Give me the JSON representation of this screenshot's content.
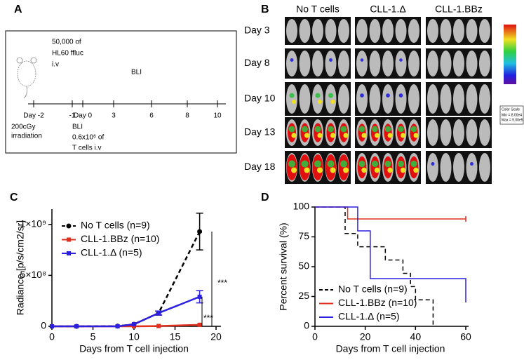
{
  "panel_a": {
    "letter": "A",
    "injection": [
      "50,000  of",
      "HL60  ffluc",
      "i.v"
    ],
    "bli_top": "BLI",
    "timeline": [
      "Day -2",
      "-1",
      "Day 0",
      "3",
      "6",
      "8",
      "10"
    ],
    "irradiation": [
      "200cGy",
      "irradiation"
    ],
    "tcell": [
      "BLI",
      "0.6x10⁶  of",
      "T cells i.v"
    ]
  },
  "panel_b": {
    "letter": "B",
    "columns": [
      "No T cells",
      "CLL-1.Δ",
      "CLL-1.BBz"
    ],
    "rows": [
      "Day 3",
      "Day 8",
      "Day 10",
      "Day 13",
      "Day 18"
    ],
    "scale": [
      "Color Scale",
      "Min = 8.00e4",
      "Max = 9.00e5"
    ]
  },
  "chart_data": [
    {
      "type": "line",
      "letter": "C",
      "y_label": "Radiance [p/s/cm2/sr]",
      "x_label": "Days from T cell injection",
      "x": [
        0,
        3,
        8,
        10,
        13,
        18
      ],
      "xlim": [
        0,
        20
      ],
      "xticks": [
        0,
        5,
        10,
        15,
        20
      ],
      "ylim": [
        0,
        1150000000
      ],
      "yticks": [
        0,
        {
          "value": 500000000,
          "label": "5×10⁸"
        },
        {
          "value": 1000000000,
          "label": "1×10⁹"
        }
      ],
      "series": [
        {
          "name": "No T cells (n=9)",
          "color": "#000000",
          "marker": "circle",
          "dashed": true,
          "values": [
            0,
            0,
            2000000,
            20000000,
            130000000,
            930000000
          ],
          "errors": [
            null,
            null,
            null,
            null,
            20000000,
            180000000
          ]
        },
        {
          "name": "CLL-1.BBz (n=10)",
          "color": "#e0301e",
          "marker": "square",
          "dashed": false,
          "values": [
            0,
            0,
            0,
            0,
            3000000,
            15000000
          ]
        },
        {
          "name": "CLL-1.Δ (n=5)",
          "color": "#2b1fe0",
          "marker": "square",
          "dashed": false,
          "values": [
            0,
            0,
            0,
            20000000,
            130000000,
            290000000
          ],
          "errors": [
            null,
            null,
            null,
            null,
            20000000,
            60000000
          ]
        }
      ],
      "annotations": [
        "***",
        "***"
      ]
    },
    {
      "type": "step",
      "letter": "D",
      "y_label": "Percent survival (%)",
      "x_label": "Days from T cell injection",
      "xlim": [
        0,
        60
      ],
      "xticks": [
        0,
        20,
        40,
        60
      ],
      "ylim": [
        0,
        100
      ],
      "yticks": [
        0,
        25,
        50,
        75,
        100
      ],
      "series": [
        {
          "name": "No T cells (n=9)",
          "color": "#000000",
          "dashed": true,
          "x": [
            0,
            12,
            17,
            28,
            35,
            38,
            40,
            47
          ],
          "values": [
            100,
            77.8,
            66.7,
            55.6,
            44.4,
            33.3,
            22.2,
            0
          ]
        },
        {
          "name": "CLL-1.BBz (n=10)",
          "color": "#e0301e",
          "dashed": false,
          "x": [
            0,
            13,
            60
          ],
          "values": [
            100,
            90,
            90
          ]
        },
        {
          "name": "CLL-1.Δ (n=5)",
          "color": "#2b1fe0",
          "dashed": false,
          "x": [
            0,
            17,
            22,
            60
          ],
          "values": [
            100,
            80,
            40,
            20
          ]
        }
      ]
    }
  ]
}
